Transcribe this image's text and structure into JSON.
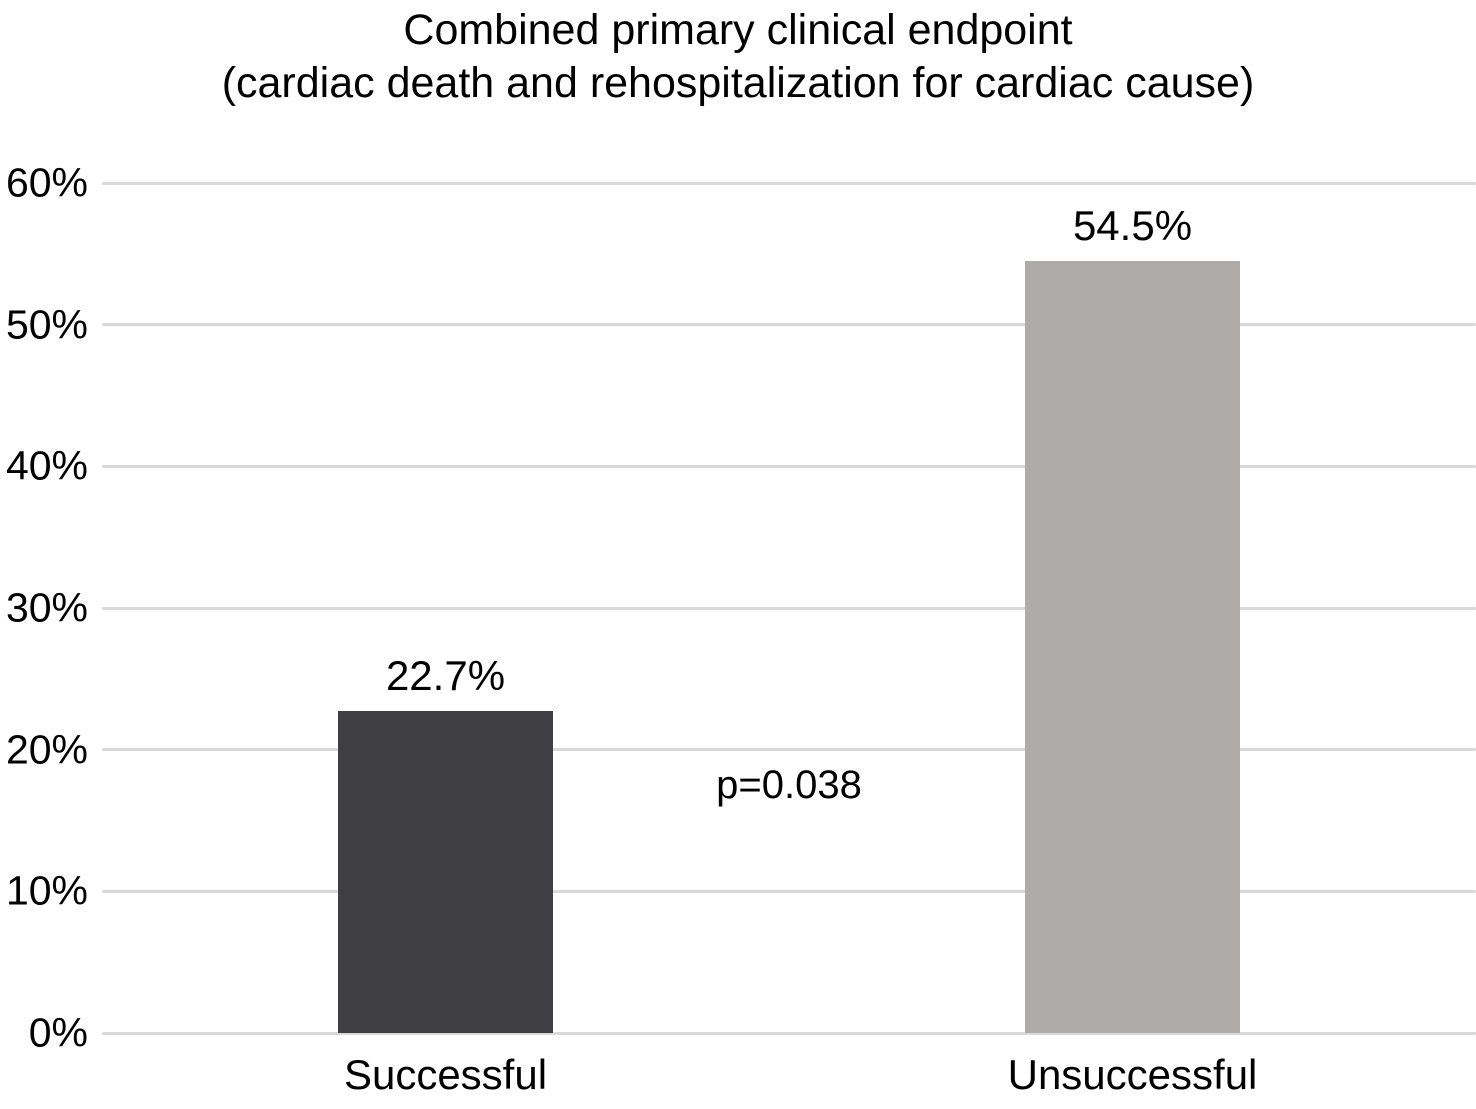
{
  "title": {
    "line1": "Combined primary clinical endpoint",
    "line2": "(cardiac death and rehospitalization for cardiac cause)"
  },
  "chart_data": {
    "type": "bar",
    "title": "Combined primary clinical endpoint (cardiac death and rehospitalization for cardiac cause)",
    "categories": [
      "Successful",
      "Unsuccessful"
    ],
    "values": [
      22.7,
      54.5
    ],
    "value_labels": [
      "22.7%",
      "54.5%"
    ],
    "bar_colors": [
      "#3f3f41",
      "#aeabab"
    ],
    "xlabel": "",
    "ylabel": "",
    "ylim": [
      0,
      60
    ],
    "yticks": [
      0,
      10,
      20,
      30,
      40,
      50,
      60
    ],
    "ytick_labels": [
      "0%",
      "10%",
      "20%",
      "30%",
      "40%",
      "50%",
      "60%"
    ],
    "grid": "horizontal",
    "gridline_color": "#d9d9d9",
    "legend": "none",
    "annotation": {
      "text": "p=0.038",
      "x_fraction": 0.5,
      "y_value": 17.5
    }
  }
}
